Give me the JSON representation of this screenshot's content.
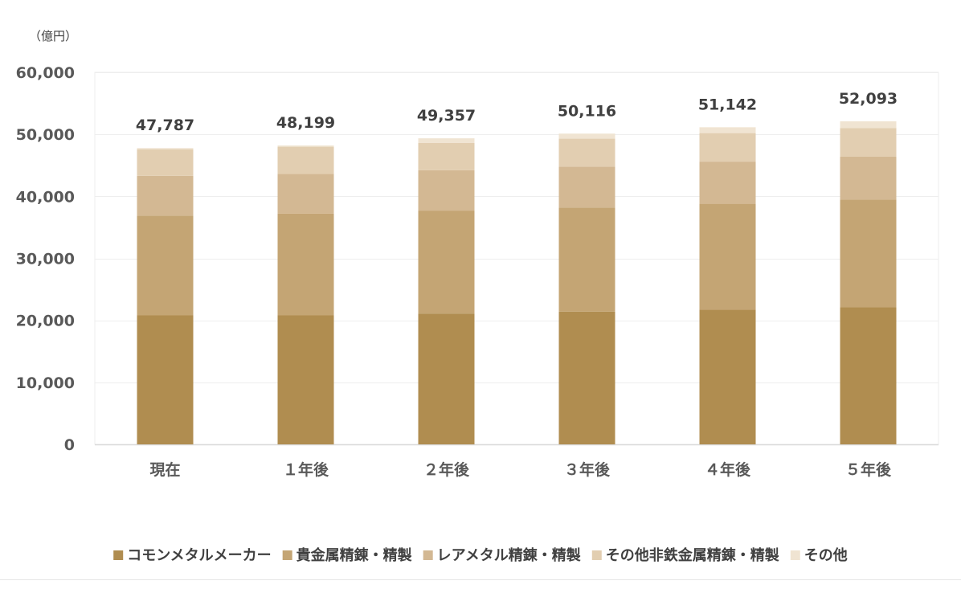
{
  "chart_data": {
    "type": "bar",
    "stacked": true,
    "unit_label": "（億円）",
    "categories": [
      "現在",
      "１年後",
      "２年後",
      "３年後",
      "４年後",
      "５年後"
    ],
    "totals": [
      "47,787",
      "48,199",
      "49,357",
      "50,116",
      "51,142",
      "52,093"
    ],
    "total_values": [
      47787,
      48199,
      49357,
      50116,
      51142,
      52093
    ],
    "ylim": [
      0,
      60000
    ],
    "yticks": [
      0,
      10000,
      20000,
      30000,
      40000,
      50000,
      60000
    ],
    "ytick_labels": [
      "0",
      "10,000",
      "20,000",
      "30,000",
      "40,000",
      "50,000",
      "60,000"
    ],
    "grid": true,
    "legend_position": "bottom",
    "series": [
      {
        "name": "コモンメタルメーカー",
        "color": "#b08d50",
        "values": [
          20800,
          20800,
          21100,
          21400,
          21700,
          22100
        ]
      },
      {
        "name": "貴金属精錬・精製",
        "color": "#c4a574",
        "values": [
          16100,
          16400,
          16600,
          16800,
          17100,
          17400
        ]
      },
      {
        "name": "レアメタル精錬・精製",
        "color": "#d3b893",
        "values": [
          6400,
          6400,
          6500,
          6600,
          6800,
          6900
        ]
      },
      {
        "name": "その他非鉄金属精錬・精製",
        "color": "#e2ceb1",
        "values": [
          4300,
          4400,
          4400,
          4500,
          4600,
          4600
        ]
      },
      {
        "name": "その他",
        "color": "#f0e4d2",
        "values": [
          187,
          199,
          757,
          816,
          942,
          1093
        ]
      }
    ]
  }
}
